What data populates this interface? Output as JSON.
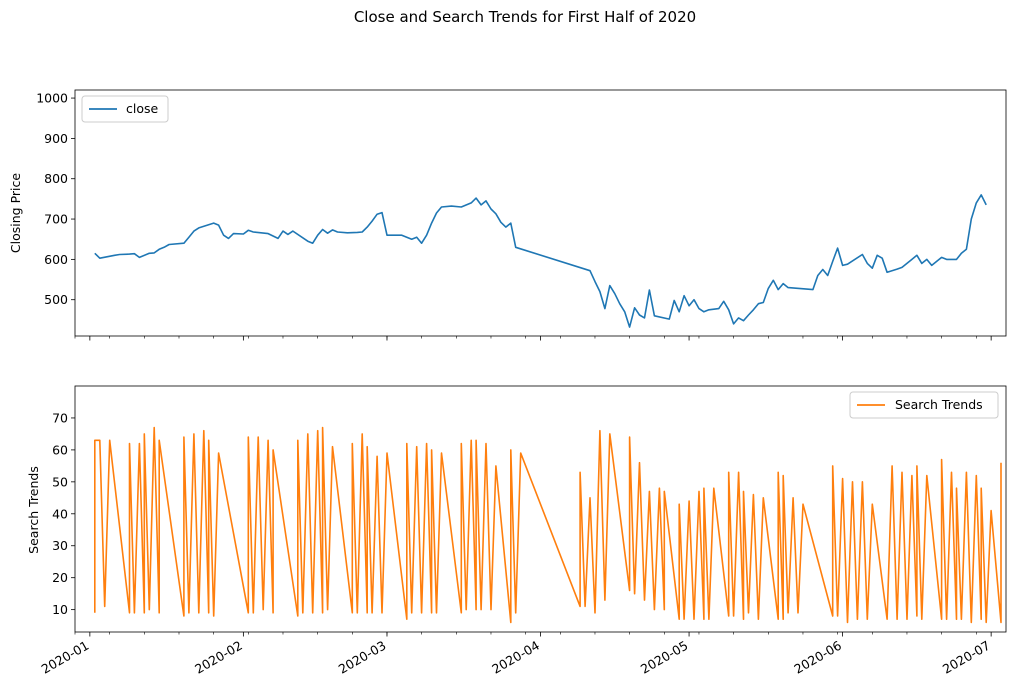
{
  "chart_data": {
    "title": "Close and Search Trends for First Half of 2020",
    "x_ticks": [
      "2020-01",
      "2020-02",
      "2020-03",
      "2020-04",
      "2020-05",
      "2020-06",
      "2020-07"
    ],
    "x_range": [
      "2019-12-29",
      "2020-07-04"
    ],
    "panels": [
      {
        "type": "line",
        "ylabel": "Closing Price",
        "ylim": [
          410,
          1020
        ],
        "yticks": [
          500,
          600,
          700,
          800,
          900,
          1000
        ],
        "legend": "top-left",
        "series": [
          {
            "name": "close",
            "color": "#1f77b4",
            "points": [
              [
                "2020-01-02",
                615
              ],
              [
                "2020-01-03",
                603
              ],
              [
                "2020-01-06",
                610
              ],
              [
                "2020-01-07",
                612
              ],
              [
                "2020-01-09",
                613
              ],
              [
                "2020-01-10",
                614
              ],
              [
                "2020-01-11",
                605
              ],
              [
                "2020-01-13",
                615
              ],
              [
                "2020-01-14",
                616
              ],
              [
                "2020-01-15",
                625
              ],
              [
                "2020-01-16",
                630
              ],
              [
                "2020-01-17",
                637
              ],
              [
                "2020-01-20",
                640
              ],
              [
                "2020-01-21",
                655
              ],
              [
                "2020-01-22",
                670
              ],
              [
                "2020-01-23",
                678
              ],
              [
                "2020-01-26",
                690
              ],
              [
                "2020-01-27",
                685
              ],
              [
                "2020-01-28",
                660
              ],
              [
                "2020-01-29",
                652
              ],
              [
                "2020-01-30",
                664
              ],
              [
                "2020-02-01",
                663
              ],
              [
                "2020-02-02",
                672
              ],
              [
                "2020-02-03",
                668
              ],
              [
                "2020-02-06",
                664
              ],
              [
                "2020-02-08",
                652
              ],
              [
                "2020-02-09",
                670
              ],
              [
                "2020-02-10",
                662
              ],
              [
                "2020-02-11",
                670
              ],
              [
                "2020-02-14",
                645
              ],
              [
                "2020-02-15",
                640
              ],
              [
                "2020-02-16",
                660
              ],
              [
                "2020-02-17",
                674
              ],
              [
                "2020-02-18",
                665
              ],
              [
                "2020-02-19",
                673
              ],
              [
                "2020-02-20",
                668
              ],
              [
                "2020-02-22",
                666
              ],
              [
                "2020-02-24",
                667
              ],
              [
                "2020-02-25",
                668
              ],
              [
                "2020-02-26",
                680
              ],
              [
                "2020-02-27",
                695
              ],
              [
                "2020-02-28",
                712
              ],
              [
                "2020-02-29",
                716
              ],
              [
                "2020-03-01",
                660
              ],
              [
                "2020-03-04",
                660
              ],
              [
                "2020-03-06",
                650
              ],
              [
                "2020-03-07",
                655
              ],
              [
                "2020-03-08",
                640
              ],
              [
                "2020-03-09",
                660
              ],
              [
                "2020-03-10",
                690
              ],
              [
                "2020-03-11",
                715
              ],
              [
                "2020-03-12",
                730
              ],
              [
                "2020-03-14",
                732
              ],
              [
                "2020-03-16",
                730
              ],
              [
                "2020-03-18",
                740
              ],
              [
                "2020-03-19",
                752
              ],
              [
                "2020-03-20",
                735
              ],
              [
                "2020-03-21",
                745
              ],
              [
                "2020-03-22",
                725
              ],
              [
                "2020-03-23",
                713
              ],
              [
                "2020-03-24",
                692
              ],
              [
                "2020-03-25",
                680
              ],
              [
                "2020-03-26",
                690
              ],
              [
                "2020-03-27",
                630
              ],
              [
                "2020-04-11",
                572
              ],
              [
                "2020-04-12",
                545
              ],
              [
                "2020-04-13",
                520
              ],
              [
                "2020-04-14",
                478
              ],
              [
                "2020-04-15",
                535
              ],
              [
                "2020-04-16",
                515
              ],
              [
                "2020-04-17",
                490
              ],
              [
                "2020-04-18",
                470
              ],
              [
                "2020-04-19",
                432
              ],
              [
                "2020-04-20",
                480
              ],
              [
                "2020-04-21",
                462
              ],
              [
                "2020-04-22",
                455
              ],
              [
                "2020-04-23",
                524
              ],
              [
                "2020-04-24",
                460
              ],
              [
                "2020-04-27",
                452
              ],
              [
                "2020-04-28",
                498
              ],
              [
                "2020-04-29",
                470
              ],
              [
                "2020-04-30",
                510
              ],
              [
                "2020-05-01",
                485
              ],
              [
                "2020-05-02",
                500
              ],
              [
                "2020-05-03",
                478
              ],
              [
                "2020-05-04",
                470
              ],
              [
                "2020-05-05",
                475
              ],
              [
                "2020-05-07",
                478
              ],
              [
                "2020-05-08",
                496
              ],
              [
                "2020-05-09",
                475
              ],
              [
                "2020-05-10",
                440
              ],
              [
                "2020-05-11",
                455
              ],
              [
                "2020-05-12",
                448
              ],
              [
                "2020-05-13",
                462
              ],
              [
                "2020-05-14",
                475
              ],
              [
                "2020-05-15",
                490
              ],
              [
                "2020-05-16",
                493
              ],
              [
                "2020-05-17",
                528
              ],
              [
                "2020-05-18",
                548
              ],
              [
                "2020-05-19",
                525
              ],
              [
                "2020-05-20",
                540
              ],
              [
                "2020-05-21",
                530
              ],
              [
                "2020-05-26",
                525
              ],
              [
                "2020-05-27",
                560
              ],
              [
                "2020-05-28",
                575
              ],
              [
                "2020-05-29",
                560
              ],
              [
                "2020-05-30",
                595
              ],
              [
                "2020-05-31",
                628
              ],
              [
                "2020-06-01",
                585
              ],
              [
                "2020-06-02",
                588
              ],
              [
                "2020-06-05",
                612
              ],
              [
                "2020-06-06",
                590
              ],
              [
                "2020-06-07",
                578
              ],
              [
                "2020-06-08",
                610
              ],
              [
                "2020-06-09",
                603
              ],
              [
                "2020-06-10",
                568
              ],
              [
                "2020-06-12",
                576
              ],
              [
                "2020-06-13",
                580
              ],
              [
                "2020-06-15",
                600
              ],
              [
                "2020-06-16",
                610
              ],
              [
                "2020-06-17",
                590
              ],
              [
                "2020-06-18",
                600
              ],
              [
                "2020-06-19",
                585
              ],
              [
                "2020-06-21",
                605
              ],
              [
                "2020-06-22",
                600
              ],
              [
                "2020-06-24",
                600
              ],
              [
                "2020-06-25",
                615
              ],
              [
                "2020-06-26",
                625
              ],
              [
                "2020-06-27",
                700
              ],
              [
                "2020-06-28",
                740
              ],
              [
                "2020-06-29",
                760
              ],
              [
                "2020-06-30",
                735
              ]
            ]
          }
        ]
      },
      {
        "type": "line",
        "ylabel": "Search Trends",
        "ylim": [
          3,
          80
        ],
        "yticks": [
          10,
          20,
          30,
          40,
          50,
          60,
          70
        ],
        "legend": "top-right",
        "series": [
          {
            "name": "Search Trends",
            "color": "#ff7f0e",
            "points": []
          }
        ]
      }
    ]
  }
}
